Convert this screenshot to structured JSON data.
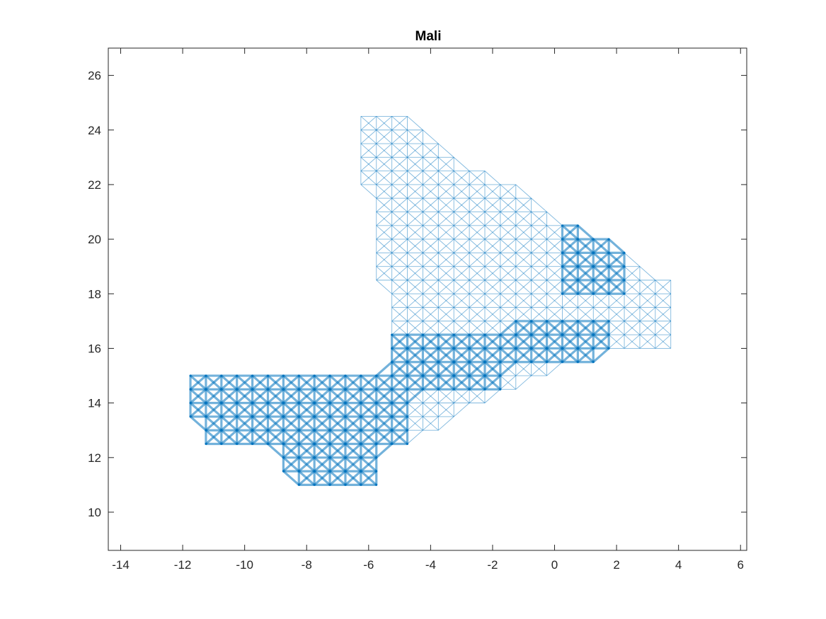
{
  "chart_data": {
    "type": "network-map",
    "title": "Mali",
    "xlabel": "",
    "ylabel": "",
    "xlim": [
      -14.4,
      6.2
    ],
    "ylim": [
      8.6,
      27
    ],
    "xticks": [
      -14,
      -12,
      -10,
      -8,
      -6,
      -4,
      -2,
      0,
      2,
      4,
      6
    ],
    "yticks": [
      10,
      12,
      14,
      16,
      18,
      20,
      22,
      24,
      26
    ],
    "grid": false,
    "grid_spacing": 0.5,
    "grid_cell_centers_offset": 0.25,
    "colors": {
      "edge": "#0072bd",
      "node": "#0072bd",
      "axis": "#262626"
    },
    "rows": [
      {
        "y": 24.5,
        "x_from": -6.25,
        "x_to": -4.75
      },
      {
        "y": 24.0,
        "x_from": -6.25,
        "x_to": -4.25
      },
      {
        "y": 23.5,
        "x_from": -6.25,
        "x_to": -3.75
      },
      {
        "y": 23.0,
        "x_from": -6.25,
        "x_to": -3.25
      },
      {
        "y": 22.5,
        "x_from": -6.25,
        "x_to": -2.25
      },
      {
        "y": 22.0,
        "x_from": -6.25,
        "x_to": -1.25
      },
      {
        "y": 21.5,
        "x_from": -5.75,
        "x_to": -0.75
      },
      {
        "y": 21.0,
        "x_from": -5.75,
        "x_to": -0.25
      },
      {
        "y": 20.5,
        "x_from": -5.75,
        "x_to": 0.75
      },
      {
        "y": 20.0,
        "x_from": -5.75,
        "x_to": 1.75
      },
      {
        "y": 19.5,
        "x_from": -5.75,
        "x_to": 2.25
      },
      {
        "y": 19.0,
        "x_from": -5.75,
        "x_to": 2.75
      },
      {
        "y": 18.5,
        "x_from": -5.75,
        "x_to": 3.75
      },
      {
        "y": 18.0,
        "x_from": -5.25,
        "x_to": 3.75
      },
      {
        "y": 17.5,
        "x_from": -5.25,
        "x_to": 3.75
      },
      {
        "y": 17.0,
        "x_from": -5.25,
        "x_to": 3.75
      },
      {
        "y": 16.5,
        "x_from": -5.25,
        "x_to": 3.75
      },
      {
        "y": 16.0,
        "x_from": -5.25,
        "x_to": 3.75
      },
      {
        "y": 15.5,
        "x_from": -5.25,
        "x_to": 1.25
      },
      {
        "y": 15.0,
        "x_from": -11.75,
        "x_to": -0.25
      },
      {
        "y": 14.5,
        "x_from": -11.75,
        "x_to": -1.25
      },
      {
        "y": 14.0,
        "x_from": -11.75,
        "x_to": -2.25
      },
      {
        "y": 13.5,
        "x_from": -11.75,
        "x_to": -3.25
      },
      {
        "y": 13.0,
        "x_from": -11.25,
        "x_to": -3.75
      },
      {
        "y": 12.5,
        "x_from": -11.25,
        "x_to": -4.75
      },
      {
        "y": 12.0,
        "x_from": -8.75,
        "x_to": -5.75
      },
      {
        "y": 11.5,
        "x_from": -8.75,
        "x_to": -5.75
      },
      {
        "y": 11.0,
        "x_from": -8.25,
        "x_to": -5.75
      }
    ],
    "heavy_edge_regions": [
      {
        "x": [
          -11.75,
          -4.75
        ],
        "y": [
          12.25,
          15.25
        ]
      },
      {
        "x": [
          -8.75,
          -5.75
        ],
        "y": [
          10.75,
          12.25
        ]
      },
      {
        "x": [
          -5.25,
          -1.75
        ],
        "y": [
          14.25,
          16.75
        ]
      },
      {
        "x": [
          -1.25,
          1.75
        ],
        "y": [
          15.25,
          17.25
        ]
      },
      {
        "x": [
          0.25,
          2.25
        ],
        "y": [
          17.75,
          20.75
        ]
      }
    ],
    "nodes": [
      {
        "x": -7.75,
        "y": 12.75,
        "size": 40
      },
      {
        "x": -5.75,
        "y": 11.25,
        "size": 7
      },
      {
        "x": -6.25,
        "y": 13.25,
        "size": 6.5
      },
      {
        "x": -5.25,
        "y": 12.25,
        "size": 5
      },
      {
        "x": -11.25,
        "y": 14.25,
        "size": 5
      },
      {
        "x": -5.75,
        "y": 13.75,
        "size": 4
      },
      {
        "x": -5.75,
        "y": 12.75,
        "size": 4
      },
      {
        "x": -6.75,
        "y": 11.75,
        "size": 3.5
      },
      {
        "x": -5.75,
        "y": 14.25,
        "size": 3.5
      },
      {
        "x": -4.25,
        "y": 14.25,
        "size": 3.5
      },
      {
        "x": -5.75,
        "y": 10.75,
        "size": 3
      },
      {
        "x": -3.25,
        "y": 13.75,
        "size": 3
      },
      {
        "x": -3.75,
        "y": 15.75,
        "size": 3
      },
      {
        "x": -3.75,
        "y": 16.25,
        "size": 2.5
      },
      {
        "x": 0.25,
        "y": 16.25,
        "size": 2.5
      },
      {
        "x": 1.25,
        "y": 15.25,
        "size": 2.5
      },
      {
        "x": -4.75,
        "y": 12.25,
        "size": 2.5
      },
      {
        "x": -3.25,
        "y": 14.25,
        "size": 2.5
      },
      {
        "x": -1.75,
        "y": 14.25,
        "size": 2.5
      },
      {
        "x": -4.25,
        "y": 14.75,
        "size": 2.5
      },
      {
        "x": -6.75,
        "y": 12.75,
        "size": 2.5
      },
      {
        "x": -6.75,
        "y": 13.75,
        "size": 2.5
      },
      {
        "x": -10.25,
        "y": 15.25,
        "size": 2.5
      },
      {
        "x": -10.75,
        "y": 15.25,
        "size": 2.5
      },
      {
        "x": -9.75,
        "y": 15.25,
        "size": 2.5
      },
      {
        "x": 0.75,
        "y": 18.75,
        "size": 2.5
      },
      {
        "x": 1.25,
        "y": 18.75,
        "size": 2.5
      }
    ],
    "default_node_size": 1.5
  }
}
